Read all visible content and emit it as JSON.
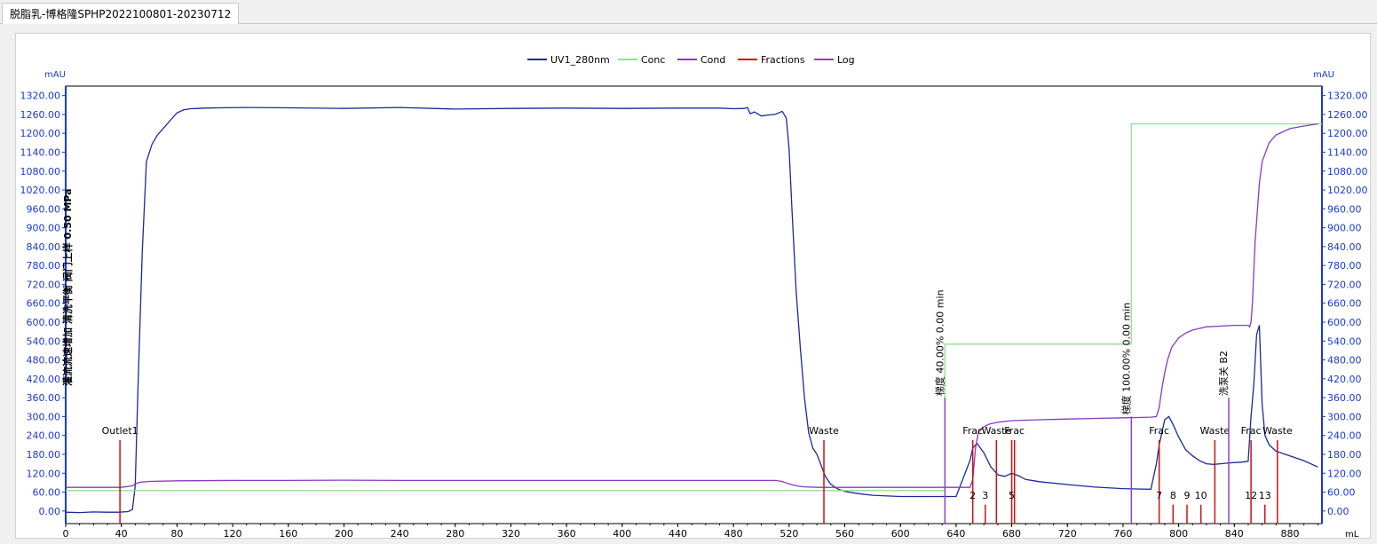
{
  "window": {
    "tab_title": "脱脂乳-博格隆SPHP2022100801-20230712"
  },
  "colors": {
    "uv": "#1a2a9a",
    "conc": "#90e090",
    "cond": "#8a38c8",
    "fractions": "#d01010",
    "log": "#9040c8",
    "axis_text": "#1a3ad0",
    "frame": "#000000"
  },
  "chart_data": {
    "type": "line",
    "legend": [
      "UV1_280nm",
      "Conc",
      "Cond",
      "Fractions",
      "Log"
    ],
    "legend_position": "top-center",
    "y_unit_left": "mAU",
    "y_unit_right": "mAU",
    "x_unit": "mL",
    "xlim": [
      0,
      903
    ],
    "ylim": [
      -40,
      1350
    ],
    "y_ticks": [
      "1320.00",
      "1260.00",
      "1200.00",
      "1140.00",
      "1080.00",
      "1020.00",
      "960.00",
      "900.00",
      "840.00",
      "780.00",
      "720.00",
      "660.00",
      "600.00",
      "540.00",
      "480.00",
      "420.00",
      "360.00",
      "300.00",
      "240.00",
      "180.00",
      "120.00",
      "60.00",
      "0.00"
    ],
    "x_ticks": [
      "0",
      "40",
      "80",
      "120",
      "160",
      "200",
      "240",
      "280",
      "320",
      "360",
      "400",
      "440",
      "480",
      "520",
      "560",
      "600",
      "640",
      "680",
      "720",
      "760",
      "800",
      "840",
      "880"
    ],
    "series": [
      {
        "name": "UV1_280nm",
        "x": [
          0,
          10,
          20,
          30,
          38,
          45,
          48,
          50,
          52,
          55,
          58,
          62,
          66,
          70,
          75,
          80,
          85,
          90,
          95,
          100,
          110,
          130,
          160,
          200,
          240,
          280,
          320,
          360,
          400,
          440,
          470,
          480,
          488,
          490,
          492,
          495,
          500,
          505,
          510,
          515,
          518,
          520,
          522,
          525,
          528,
          531,
          534,
          537,
          540,
          543,
          546,
          550,
          555,
          560,
          570,
          580,
          600,
          620,
          640,
          650,
          652,
          655,
          660,
          665,
          670,
          675,
          680,
          685,
          690,
          700,
          720,
          740,
          760,
          770,
          780,
          784,
          786,
          788,
          790,
          793,
          796,
          800,
          805,
          810,
          815,
          820,
          825,
          830,
          835,
          840,
          845,
          850,
          852,
          854,
          855,
          856,
          858,
          860,
          862,
          865,
          870,
          880,
          890,
          900
        ],
        "y": [
          -4,
          -5,
          -3,
          -4,
          -4,
          -2,
          5,
          80,
          400,
          820,
          1110,
          1165,
          1195,
          1215,
          1240,
          1265,
          1275,
          1278,
          1279,
          1280,
          1281,
          1282,
          1281,
          1279,
          1282,
          1277,
          1279,
          1280,
          1279,
          1280,
          1280,
          1278,
          1279,
          1282,
          1262,
          1268,
          1255,
          1258,
          1260,
          1270,
          1248,
          1150,
          960,
          700,
          520,
          360,
          250,
          200,
          180,
          145,
          110,
          85,
          70,
          62,
          55,
          50,
          46,
          46,
          46,
          160,
          200,
          215,
          185,
          140,
          115,
          110,
          120,
          112,
          100,
          93,
          84,
          76,
          71,
          70,
          69,
          150,
          210,
          250,
          290,
          300,
          275,
          235,
          195,
          175,
          160,
          150,
          148,
          150,
          152,
          154,
          155,
          158,
          300,
          400,
          480,
          560,
          590,
          340,
          240,
          210,
          190,
          175,
          160,
          140
        ],
        "color_key": "uv"
      },
      {
        "name": "Conc",
        "x": [
          0,
          632,
          632,
          766,
          766,
          903
        ],
        "y": [
          65,
          65,
          530,
          530,
          1230,
          1230
        ],
        "color_key": "conc"
      },
      {
        "name": "Cond",
        "x": [
          0,
          40,
          48,
          52,
          55,
          60,
          80,
          120,
          160,
          200,
          240,
          280,
          320,
          360,
          400,
          440,
          480,
          510,
          515,
          520,
          525,
          530,
          540,
          560,
          580,
          600,
          620,
          640,
          650,
          652,
          654,
          656,
          660,
          664,
          670,
          680,
          700,
          720,
          740,
          760,
          770,
          780,
          784,
          786,
          788,
          790,
          792,
          795,
          800,
          805,
          810,
          820,
          840,
          850,
          851,
          852,
          853,
          854,
          855,
          858,
          860,
          865,
          870,
          880,
          890,
          900
        ],
        "y": [
          75,
          75,
          80,
          90,
          92,
          94,
          96,
          97,
          97,
          98,
          97,
          97,
          97,
          97,
          97,
          97,
          97,
          97,
          94,
          86,
          80,
          77,
          75,
          75,
          75,
          75,
          75,
          75,
          75,
          100,
          200,
          250,
          268,
          276,
          282,
          287,
          290,
          292,
          294,
          296,
          297,
          298,
          300,
          330,
          390,
          440,
          480,
          520,
          550,
          565,
          575,
          585,
          590,
          590,
          585,
          600,
          660,
          760,
          860,
          1040,
          1110,
          1170,
          1195,
          1215,
          1223,
          1230
        ],
        "color_key": "cond"
      }
    ],
    "fractions": [
      {
        "x": 39,
        "label": "Outlet1",
        "height": 225
      },
      {
        "x": 545,
        "label": "Waste",
        "height": 225
      },
      {
        "x": 652,
        "label": "2",
        "height": 225
      },
      {
        "x": 661,
        "label": "3",
        "height": 20
      },
      {
        "x": 669,
        "label": "",
        "height": 225
      },
      {
        "x": 680,
        "label": "5",
        "height": 225
      },
      {
        "x": 682,
        "label": "",
        "height": 225
      },
      {
        "x": 786,
        "label": "7",
        "height": 225
      },
      {
        "x": 796,
        "label": "8",
        "height": 20
      },
      {
        "x": 806,
        "label": "9",
        "height": 20
      },
      {
        "x": 816,
        "label": "10",
        "height": 20
      },
      {
        "x": 826,
        "label": "",
        "height": 225
      },
      {
        "x": 852,
        "label": "12",
        "height": 225
      },
      {
        "x": 862,
        "label": "13",
        "height": 20
      },
      {
        "x": 871,
        "label": "",
        "height": 225
      }
    ],
    "fraction_upper_labels": [
      {
        "x": 39,
        "text": "Outlet1"
      },
      {
        "x": 545,
        "text": "Waste"
      },
      {
        "x": 652,
        "text": "Frac"
      },
      {
        "x": 669,
        "text": "Waste"
      },
      {
        "x": 682,
        "text": "Frac"
      },
      {
        "x": 786,
        "text": "Frac"
      },
      {
        "x": 826,
        "text": "Waste"
      },
      {
        "x": 852,
        "text": "Frac"
      },
      {
        "x": 871,
        "text": "Waste"
      }
    ],
    "log_events": [
      {
        "x": 632,
        "text": "梯度  40.00%  0.00 min",
        "height": 360
      },
      {
        "x": 766,
        "text": "梯度  100.00%  0.00 min",
        "height": 300
      },
      {
        "x": 836,
        "text": "洗泵关 B2",
        "height": 360
      }
    ],
    "left_overlay_text": "灌流流速增加 清洗平衡 阀门上样 0.50 MPa"
  }
}
